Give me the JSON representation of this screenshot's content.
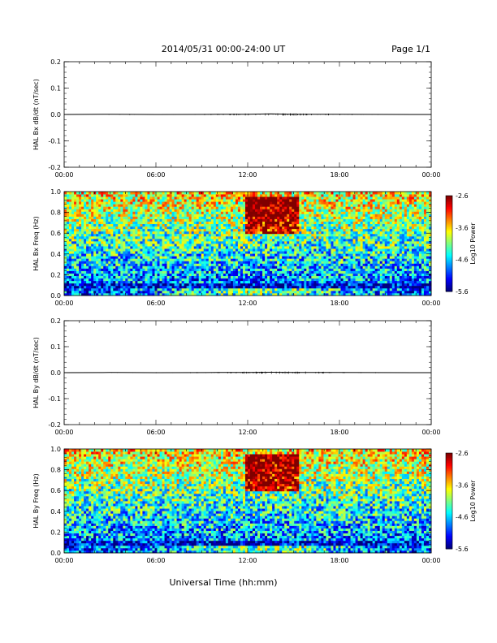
{
  "header": {
    "title": "2014/05/31   00:00-24:00 UT",
    "page": "Page 1/1"
  },
  "footer": {
    "xlabel": "Universal Time (hh:mm)"
  },
  "x_ticks": [
    "00:00",
    "06:00",
    "12:00",
    "18:00",
    "00:00"
  ],
  "colors": {
    "axis": "#000000",
    "background": "#ffffff"
  },
  "chart_data": [
    {
      "type": "line",
      "ylabel": "HAL Bx dB/dt (nT/sec)",
      "xlim": [
        0,
        24
      ],
      "ylim": [
        -0.2,
        0.2
      ],
      "y_ticks": [
        "0.2",
        "0.1",
        "0.0",
        "-0.1",
        "-0.2"
      ],
      "series": [
        {
          "x": [
            0,
            3,
            6,
            10,
            12,
            13.5,
            15,
            17.5,
            24
          ],
          "values": [
            0.0,
            0.001,
            0.0,
            0.0005,
            0.001,
            0.002,
            0.001,
            0.001,
            0.0
          ]
        }
      ]
    },
    {
      "type": "heatmap",
      "ylabel": "HAL Bx Freq (Hz)",
      "xlim": [
        0,
        24
      ],
      "ylim": [
        0.0,
        1.0
      ],
      "y_ticks": [
        "1.0",
        "0.8",
        "0.6",
        "0.4",
        "0.2",
        "0.0"
      ],
      "colorbar": {
        "label": "Log10 Power",
        "range": [
          -5.6,
          -2.6
        ],
        "ticks": [
          "-2.6",
          "-3.6",
          "-4.6",
          "-5.6"
        ]
      },
      "features": {
        "burst_time_hours": [
          11.8,
          15.3
        ],
        "burst_freq_hz": [
          0.6,
          0.95
        ]
      }
    },
    {
      "type": "line",
      "ylabel": "HAL By dB/dt (nT/sec)",
      "xlim": [
        0,
        24
      ],
      "ylim": [
        -0.2,
        0.2
      ],
      "y_ticks": [
        "0.2",
        "0.1",
        "0.0",
        "-0.1",
        "-0.2"
      ],
      "series": [
        {
          "x": [
            0,
            3,
            6,
            10,
            12,
            13.5,
            15,
            17.5,
            24
          ],
          "values": [
            0.0,
            0.0005,
            0.0,
            0.0005,
            0.001,
            0.0015,
            0.001,
            0.0005,
            0.0
          ]
        }
      ]
    },
    {
      "type": "heatmap",
      "ylabel": "HAL By Freq (Hz)",
      "xlim": [
        0,
        24
      ],
      "ylim": [
        0.0,
        1.0
      ],
      "y_ticks": [
        "1.0",
        "0.8",
        "0.6",
        "0.4",
        "0.2",
        "0.0"
      ],
      "colorbar": {
        "label": "Log10 Power",
        "range": [
          -5.6,
          -2.6
        ],
        "ticks": [
          "-2.6",
          "-3.6",
          "-4.6",
          "-5.6"
        ]
      },
      "features": {
        "burst_time_hours": [
          11.8,
          15.3
        ],
        "burst_freq_hz": [
          0.6,
          0.95
        ]
      }
    }
  ]
}
